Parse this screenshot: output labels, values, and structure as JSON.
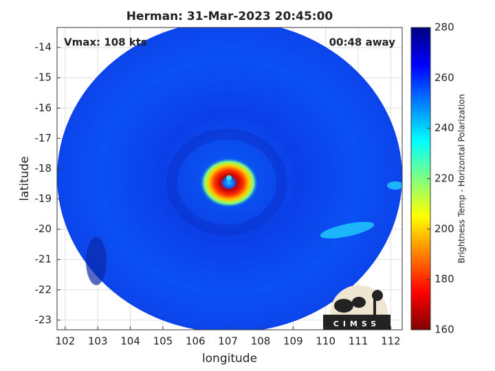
{
  "chart_data": {
    "type": "image",
    "title": "Herman: 31-Mar-2023 20:45:00",
    "annotations": [
      "Vmax: 108 kts",
      "00:48 away"
    ],
    "xlabel": "longitude",
    "ylabel": "latitude",
    "xlim": [
      101.75,
      112.35
    ],
    "xticks": [
      102,
      103,
      104,
      105,
      106,
      107,
      108,
      109,
      110,
      111,
      112
    ],
    "ylim": [
      -23.32,
      -13.34
    ],
    "yticks": [
      -14,
      -15,
      -16,
      -17,
      -18,
      -19,
      -20,
      -21,
      -22,
      -23
    ],
    "grid": true,
    "colorbar": {
      "label": "Brightness Temp - Horizontal Polarization",
      "lim": [
        160,
        280
      ],
      "ticks": [
        160,
        180,
        200,
        220,
        240,
        260,
        280
      ]
    },
    "logo": "CIMSS"
  }
}
